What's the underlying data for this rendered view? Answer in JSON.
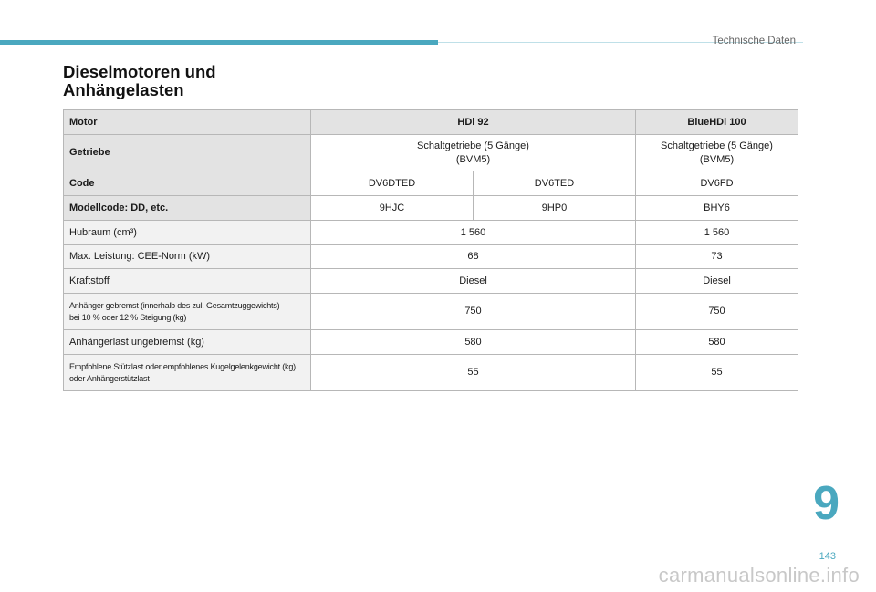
{
  "header": {
    "section": "Technische Daten"
  },
  "title": {
    "line1": "Dieselmotoren und",
    "line2": "Anhängelasten"
  },
  "table": {
    "motor": {
      "label": "Motor",
      "v1": "HDi 92",
      "v2": "BlueHDi 100"
    },
    "getriebe": {
      "label": "Getriebe",
      "v1a": "Schaltgetriebe (5 Gänge)",
      "v1b": "(BVM5)",
      "v2a": "Schaltgetriebe (5 Gänge)",
      "v2b": "(BVM5)"
    },
    "code": {
      "label": "Code",
      "v1": "DV6DTED",
      "v2": "DV6TED",
      "v3": "DV6FD"
    },
    "modellcode": {
      "label": "Modellcode: DD, etc.",
      "v1": "9HJC",
      "v2": "9HP0",
      "v3": "BHY6"
    },
    "hubraum": {
      "label": "Hubraum (cm³)",
      "v1": "1 560",
      "v2": "1 560"
    },
    "leistung": {
      "label": "Max. Leistung: CEE-Norm (kW)",
      "v1": "68",
      "v2": "73"
    },
    "kraftstoff": {
      "label": "Kraftstoff",
      "v1": "Diesel",
      "v2": "Diesel"
    },
    "gebremst": {
      "label_a": "Anhänger gebremst (innerhalb des zul. Gesamtzuggewichts)",
      "label_b": "bei 10 % oder 12 % Steigung (kg)",
      "v1": "750",
      "v2": "750"
    },
    "ungebremst": {
      "label": "Anhängerlast ungebremst (kg)",
      "v1": "580",
      "v2": "580"
    },
    "stuetzlast": {
      "label_a": "Empfohlene Stützlast oder empfohlenes Kugelgelenkgewicht (kg)",
      "label_b": "oder Anhängerstützlast",
      "v1": "55",
      "v2": "55"
    }
  },
  "footer": {
    "chapter": "9",
    "page": "143",
    "watermark": "carmanualsonline.info"
  },
  "colors": {
    "accent": "#4aa8bf",
    "header_bg": "#e3e3e3",
    "label_bg": "#f2f2f2"
  }
}
